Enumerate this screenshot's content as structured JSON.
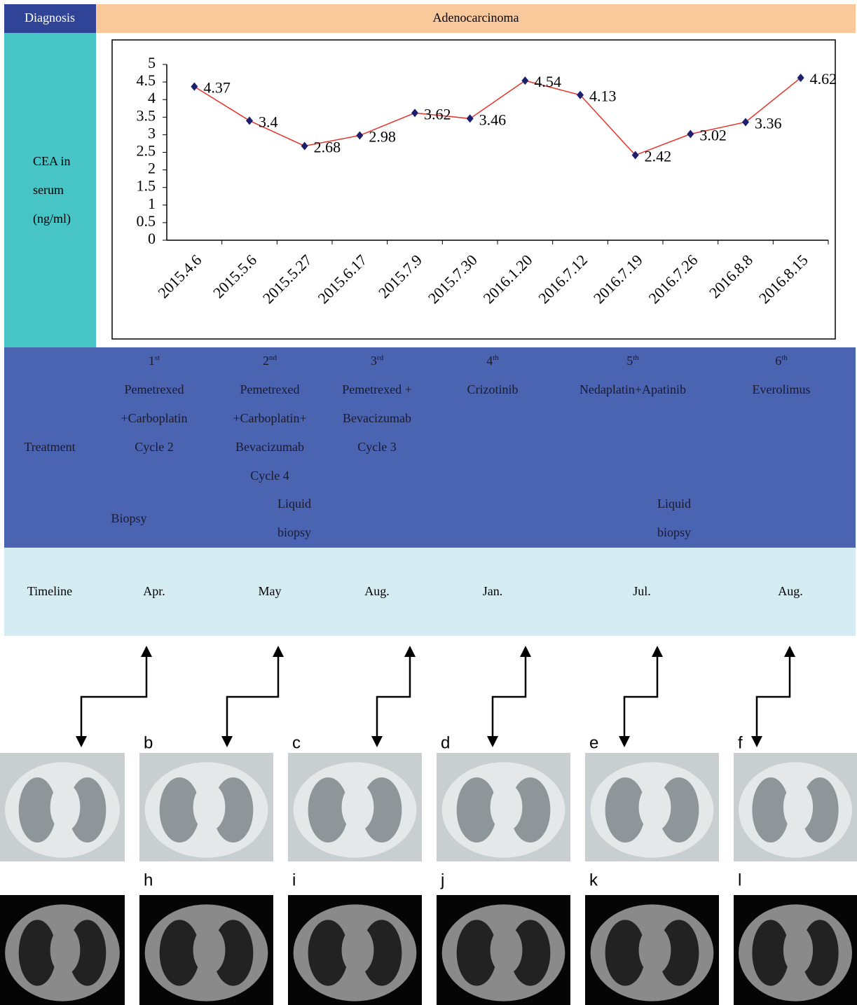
{
  "diagnosis": {
    "label": "Diagnosis",
    "value": "Adenocarcinoma"
  },
  "chart_data": {
    "type": "line",
    "y_label_lines": [
      "CEA in",
      "serum",
      "(ng/ml)"
    ],
    "categories": [
      "2015.4.6",
      "2015.5.6",
      "2015.5.27",
      "2015.6.17",
      "2015.7.9",
      "2015.7.30",
      "2016.1.20",
      "2016.7.12",
      "2016.7.19",
      "2016.7.26",
      "2016.8.8",
      "2016.8.15"
    ],
    "series": [
      {
        "color": "#e8332a",
        "marker_color": "#1c1f6e",
        "values": [
          4.37,
          3.4,
          2.68,
          2.98,
          3.62,
          3.46,
          4.54,
          4.13,
          2.42,
          3.02,
          3.36,
          4.62
        ]
      }
    ],
    "ylim": [
      0,
      5
    ],
    "yticks": [
      0,
      0.5,
      1,
      1.5,
      2,
      2.5,
      3,
      3.5,
      4,
      4.5,
      5
    ]
  },
  "treatment": {
    "label": "Treatment",
    "columns": [
      {
        "number": "1",
        "suffix": "st",
        "lines": [
          "Pemetrexed",
          "+Carboplatin",
          "Cycle 2"
        ]
      },
      {
        "number": "2",
        "suffix": "nd",
        "lines": [
          "Pemetrexed",
          "+Carboplatin+",
          "Bevacizumab",
          "Cycle 4"
        ]
      },
      {
        "number": "3",
        "suffix": "rd",
        "lines": [
          "Pemetrexed +",
          "Bevacizumab",
          "Cycle 3"
        ]
      },
      {
        "number": "4",
        "suffix": "th",
        "lines": [
          "Crizotinib"
        ]
      },
      {
        "number": "5",
        "suffix": "th",
        "lines": [
          "Nedaplatin+Apatinib"
        ]
      },
      {
        "number": "6",
        "suffix": "th",
        "lines": [
          "Everolimus"
        ]
      }
    ],
    "notes": [
      {
        "lines": [
          "Biopsy"
        ]
      },
      {
        "lines": [
          "Liquid",
          "biopsy"
        ]
      },
      {
        "lines": [
          "Liquid",
          "biopsy"
        ]
      }
    ]
  },
  "timeline": {
    "label": "Timeline",
    "months": [
      "Apr.",
      "May",
      "Aug.",
      "Jan.",
      "Jul.",
      "Aug."
    ]
  },
  "panels": {
    "top": [
      "b",
      "c",
      "d",
      "e",
      "f"
    ],
    "bottom": [
      "h",
      "i",
      "j",
      "k",
      "l"
    ]
  }
}
